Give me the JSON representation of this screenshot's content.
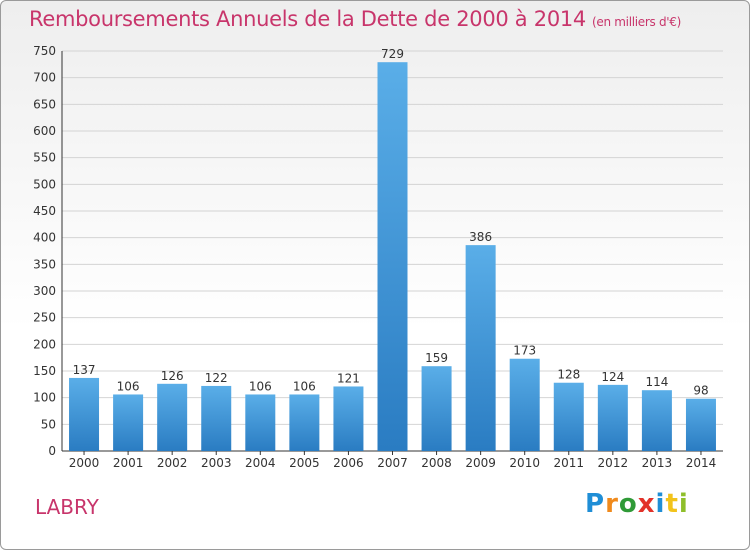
{
  "header": {
    "title": "Remboursements Annuels de la Dette de 2000 à 2014",
    "unit": "(en milliers d'€)"
  },
  "footer": {
    "town": "LABRY",
    "logo_letters": [
      "P",
      "r",
      "o",
      "x",
      "i",
      "t",
      "i"
    ]
  },
  "colors": {
    "title": "#c8356b",
    "bar_light": "#5aaee8",
    "bar_dark": "#2a7cc2",
    "grid": "#d4d4d4"
  },
  "chart_data": {
    "type": "bar",
    "categories": [
      "2000",
      "2001",
      "2002",
      "2003",
      "2004",
      "2005",
      "2006",
      "2007",
      "2008",
      "2009",
      "2010",
      "2011",
      "2012",
      "2013",
      "2014"
    ],
    "values": [
      137,
      106,
      126,
      122,
      106,
      106,
      121,
      729,
      159,
      386,
      173,
      128,
      124,
      114,
      98
    ],
    "yticks": [
      0,
      50,
      100,
      150,
      200,
      250,
      300,
      350,
      400,
      450,
      500,
      550,
      600,
      650,
      700,
      750
    ],
    "ylim": [
      0,
      750
    ],
    "grid": true,
    "title": "Remboursements Annuels de la Dette de 2000 à 2014",
    "xlabel": "",
    "ylabel": ""
  }
}
